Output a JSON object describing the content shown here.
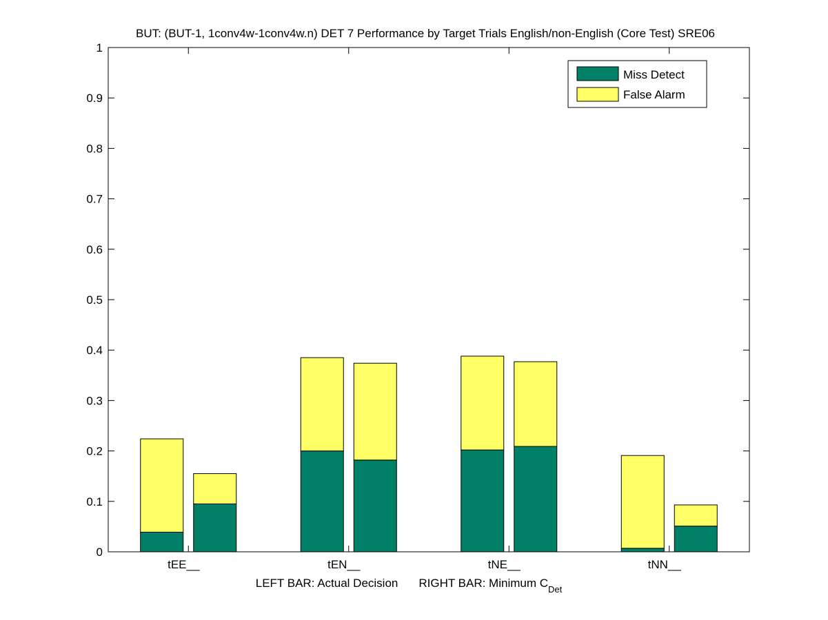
{
  "chart_data": {
    "type": "bar",
    "stacked": true,
    "title": "BUT: (BUT-1, 1conv4w-1conv4w.n) DET 7 Performance by Target Trials English/non-English (Core Test) SRE06",
    "categories": [
      "tEE__",
      "tEN__",
      "tNE__",
      "tNN__"
    ],
    "bars_per_category": [
      "Actual Decision",
      "Minimum C_Det"
    ],
    "series": [
      {
        "name": "Miss Detect",
        "color": "#008066",
        "actual": [
          0.039,
          0.2,
          0.202,
          0.007
        ],
        "minimum": [
          0.095,
          0.182,
          0.209,
          0.051
        ]
      },
      {
        "name": "False Alarm",
        "color": "#ffff66",
        "actual": [
          0.185,
          0.185,
          0.186,
          0.184
        ],
        "minimum": [
          0.06,
          0.192,
          0.168,
          0.042
        ]
      }
    ],
    "ylim": [
      0,
      1
    ],
    "yticks": [
      0,
      0.1,
      0.2,
      0.3,
      0.4,
      0.5,
      0.6,
      0.7,
      0.8,
      0.9,
      1
    ],
    "ytick_labels": [
      "0",
      "0.1",
      "0.2",
      "0.3",
      "0.4",
      "0.5",
      "0.6",
      "0.7",
      "0.8",
      "0.9",
      "1"
    ],
    "xlabel": {
      "left_text": "LEFT BAR: Actual Decision",
      "right_text": "RIGHT BAR: Minimum C",
      "right_subscript": "Det"
    },
    "legend_position": "top-right",
    "grid": false
  }
}
